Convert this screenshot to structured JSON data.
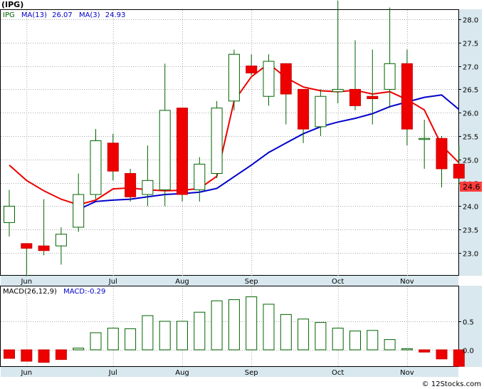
{
  "chart_data": [
    {
      "type": "candlestick",
      "ticker": "IPG",
      "legend": [
        {
          "label": "IPG",
          "color": "#006400"
        },
        {
          "label": "MA(13)",
          "value": "26.07",
          "color": "#0000cc"
        },
        {
          "label": "MA(3)",
          "value": "24.93",
          "color": "#0000cc"
        }
      ],
      "x_labels": [
        {
          "label": "Jun",
          "index": 1
        },
        {
          "label": "Jul",
          "index": 6
        },
        {
          "label": "Aug",
          "index": 10
        },
        {
          "label": "Sep",
          "index": 14
        },
        {
          "label": "Oct",
          "index": 19
        },
        {
          "label": "Nov",
          "index": 23
        }
      ],
      "y_ticks": [
        "23.0",
        "23.5",
        "24.0",
        "24.5",
        "25.0",
        "25.5",
        "26.0",
        "26.5",
        "27.0",
        "27.5",
        "28.0"
      ],
      "ylim": [
        22.45,
        28.5
      ],
      "last_price": "24.6",
      "candles": [
        {
          "open": 23.65,
          "high": 24.35,
          "low": 23.35,
          "close": 24.0
        },
        {
          "open": 23.2,
          "high": 23.2,
          "low": 22.5,
          "close": 23.1
        },
        {
          "open": 23.15,
          "high": 24.15,
          "low": 22.95,
          "close": 23.05
        },
        {
          "open": 23.15,
          "high": 23.55,
          "low": 22.75,
          "close": 23.4
        },
        {
          "open": 23.55,
          "high": 24.7,
          "low": 23.45,
          "close": 24.25
        },
        {
          "open": 24.25,
          "high": 25.65,
          "low": 24.15,
          "close": 25.4
        },
        {
          "open": 25.35,
          "high": 25.55,
          "low": 24.55,
          "close": 24.75
        },
        {
          "open": 24.7,
          "high": 24.8,
          "low": 24.1,
          "close": 24.2
        },
        {
          "open": 24.25,
          "high": 25.3,
          "low": 24.0,
          "close": 24.55
        },
        {
          "open": 24.35,
          "high": 27.05,
          "low": 24.0,
          "close": 26.05
        },
        {
          "open": 26.1,
          "high": 26.1,
          "low": 24.1,
          "close": 24.25
        },
        {
          "open": 24.35,
          "high": 25.05,
          "low": 24.1,
          "close": 24.9
        },
        {
          "open": 24.7,
          "high": 26.25,
          "low": 24.6,
          "close": 26.1
        },
        {
          "open": 26.25,
          "high": 27.35,
          "low": 26.05,
          "close": 27.25
        },
        {
          "open": 27.0,
          "high": 27.25,
          "low": 26.8,
          "close": 26.85
        },
        {
          "open": 26.35,
          "high": 27.25,
          "low": 26.15,
          "close": 27.1
        },
        {
          "open": 27.05,
          "high": 27.05,
          "low": 25.75,
          "close": 26.4
        },
        {
          "open": 26.5,
          "high": 26.5,
          "low": 25.35,
          "close": 25.65
        },
        {
          "open": 25.7,
          "high": 26.5,
          "low": 25.5,
          "close": 26.35
        },
        {
          "open": 26.45,
          "high": 28.4,
          "low": 26.2,
          "close": 26.5
        },
        {
          "open": 26.5,
          "high": 27.55,
          "low": 26.05,
          "close": 26.15
        },
        {
          "open": 26.35,
          "high": 27.35,
          "low": 25.75,
          "close": 26.3
        },
        {
          "open": 26.5,
          "high": 28.25,
          "low": 26.1,
          "close": 27.05
        },
        {
          "open": 27.05,
          "high": 27.35,
          "low": 25.3,
          "close": 25.65
        },
        {
          "open": 25.45,
          "high": 25.85,
          "low": 24.8,
          "close": 25.45
        },
        {
          "open": 25.45,
          "high": 25.5,
          "low": 24.4,
          "close": 24.8
        },
        {
          "open": 24.9,
          "high": 25.3,
          "low": 24.45,
          "close": 24.6
        }
      ],
      "series": [
        {
          "name": "MA(13)",
          "color": "#0000cc",
          "points": [
            [
              4,
              23.93
            ],
            [
              5,
              24.1
            ],
            [
              6,
              24.13
            ],
            [
              7,
              24.15
            ],
            [
              8,
              24.2
            ],
            [
              9,
              24.25
            ],
            [
              10,
              24.27
            ],
            [
              11,
              24.3
            ],
            [
              12,
              24.38
            ],
            [
              13,
              24.63
            ],
            [
              14,
              24.88
            ],
            [
              15,
              25.15
            ],
            [
              16,
              25.35
            ],
            [
              17,
              25.55
            ],
            [
              18,
              25.7
            ],
            [
              19,
              25.8
            ],
            [
              20,
              25.88
            ],
            [
              21,
              25.98
            ],
            [
              22,
              26.13
            ],
            [
              23,
              26.23
            ],
            [
              24,
              26.33
            ],
            [
              25,
              26.38
            ],
            [
              26,
              26.07
            ]
          ]
        },
        {
          "name": "MA(3)",
          "color": "#ee0000",
          "points": [
            [
              0,
              24.88
            ],
            [
              1,
              24.55
            ],
            [
              2,
              24.33
            ],
            [
              3,
              24.15
            ],
            [
              4,
              24.03
            ],
            [
              5,
              24.13
            ],
            [
              6,
              24.37
            ],
            [
              7,
              24.39
            ],
            [
              8,
              24.35
            ],
            [
              9,
              24.33
            ],
            [
              10,
              24.34
            ],
            [
              11,
              24.38
            ],
            [
              12,
              24.64
            ],
            [
              13,
              26.25
            ],
            [
              14,
              26.77
            ],
            [
              15,
              27.05
            ],
            [
              16,
              26.75
            ],
            [
              17,
              26.55
            ],
            [
              18,
              26.47
            ],
            [
              19,
              26.45
            ],
            [
              20,
              26.48
            ],
            [
              21,
              26.4
            ],
            [
              22,
              26.45
            ],
            [
              23,
              26.28
            ],
            [
              24,
              26.06
            ],
            [
              25,
              25.3
            ],
            [
              26,
              24.93
            ]
          ]
        }
      ]
    },
    {
      "type": "bar",
      "legend": [
        {
          "label": "MACD(26,12,9)",
          "color": "#000000"
        },
        {
          "label": "MACD:-0.29",
          "color": "#0000cc"
        }
      ],
      "y_ticks": [
        "0.0",
        "0.5"
      ],
      "ylim": [
        -0.3,
        1.0
      ],
      "values": [
        -0.15,
        -0.2,
        -0.22,
        -0.17,
        0.03,
        0.3,
        0.38,
        0.37,
        0.6,
        0.5,
        0.5,
        0.66,
        0.86,
        0.88,
        0.93,
        0.8,
        0.62,
        0.54,
        0.48,
        0.38,
        0.33,
        0.34,
        0.18,
        0.02,
        -0.04,
        -0.16,
        -0.29
      ]
    }
  ],
  "watermark": "© 12Stocks.com"
}
